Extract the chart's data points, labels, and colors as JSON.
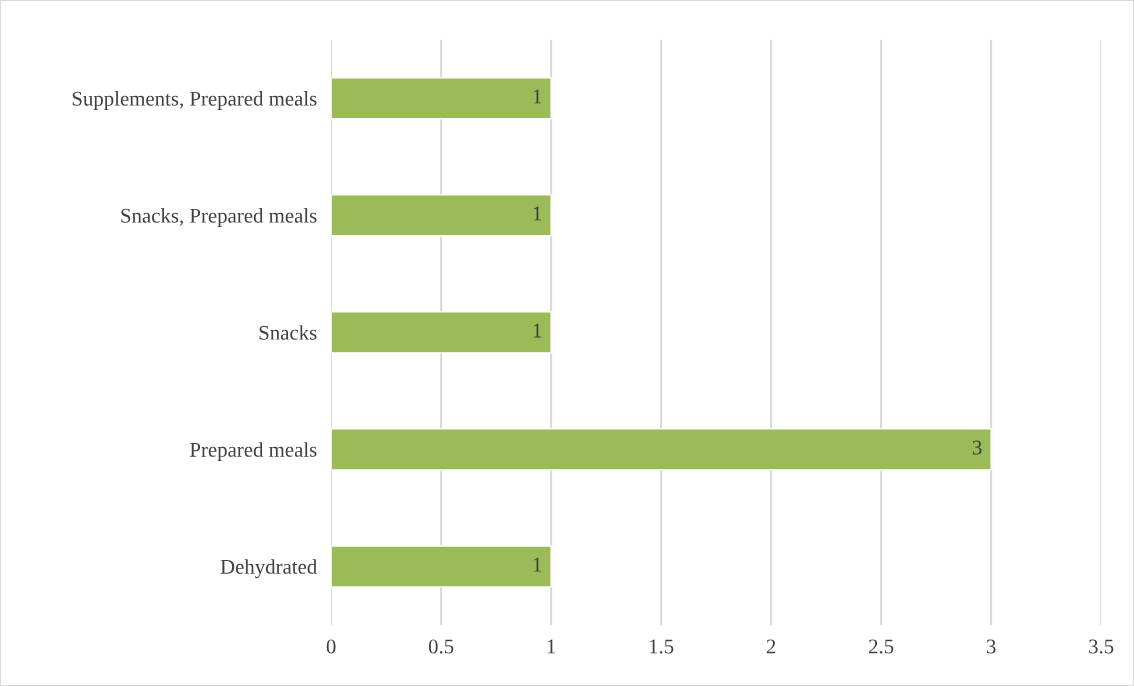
{
  "chart_data": {
    "type": "bar",
    "orientation": "horizontal",
    "categories": [
      "Supplements, Prepared meals",
      "Snacks, Prepared meals",
      "Snacks",
      "Prepared meals",
      "Dehydrated"
    ],
    "values": [
      1,
      1,
      1,
      3,
      1
    ],
    "color": "#9bbb59",
    "xlim": [
      0,
      3.5
    ],
    "xticks": [
      0,
      0.5,
      1,
      1.5,
      2,
      2.5,
      3,
      3.5
    ],
    "grid": "x",
    "data_labels": true,
    "legend": false
  }
}
